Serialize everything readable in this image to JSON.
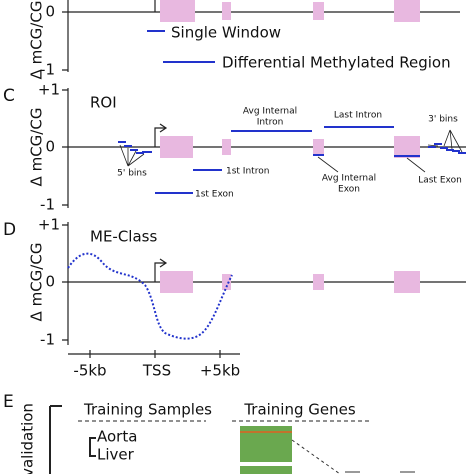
{
  "panel_b": {
    "y_top": "0",
    "y_bottom": "-1",
    "axis_label": "Δ mCG/CG",
    "window_label": "Single Window",
    "dmr_label": "Differential Methylated Region"
  },
  "panel_c": {
    "letter": "C",
    "y_top": "+1",
    "y_mid": "0",
    "y_bottom": "-1",
    "axis_label": "Δ mCG/CG",
    "title": "ROI",
    "labels": {
      "avg_intron_1": "Avg Internal",
      "avg_intron_2": "Intron",
      "last_intron": "Last Intron",
      "bins3": "3' bins",
      "bins5": "5' bins",
      "intron1": "1st Intron",
      "exon1": "1st Exon",
      "avg_exon_1": "Avg Internal",
      "avg_exon_2": "Exon",
      "last_exon": "Last Exon"
    }
  },
  "panel_d": {
    "letter": "D",
    "y_top": "+1",
    "y_mid": "0",
    "y_bottom": "-1",
    "axis_label": "Δ mCG/CG",
    "title": "ME-Class",
    "x_left": "-5kb",
    "x_mid": "TSS",
    "x_right": "+5kb"
  },
  "panel_e": {
    "letter": "E",
    "side_label": "validation",
    "samples_title": "Training Samples",
    "genes_title": "Training Genes",
    "sample_1": "Aorta",
    "sample_2": "Liver"
  }
}
